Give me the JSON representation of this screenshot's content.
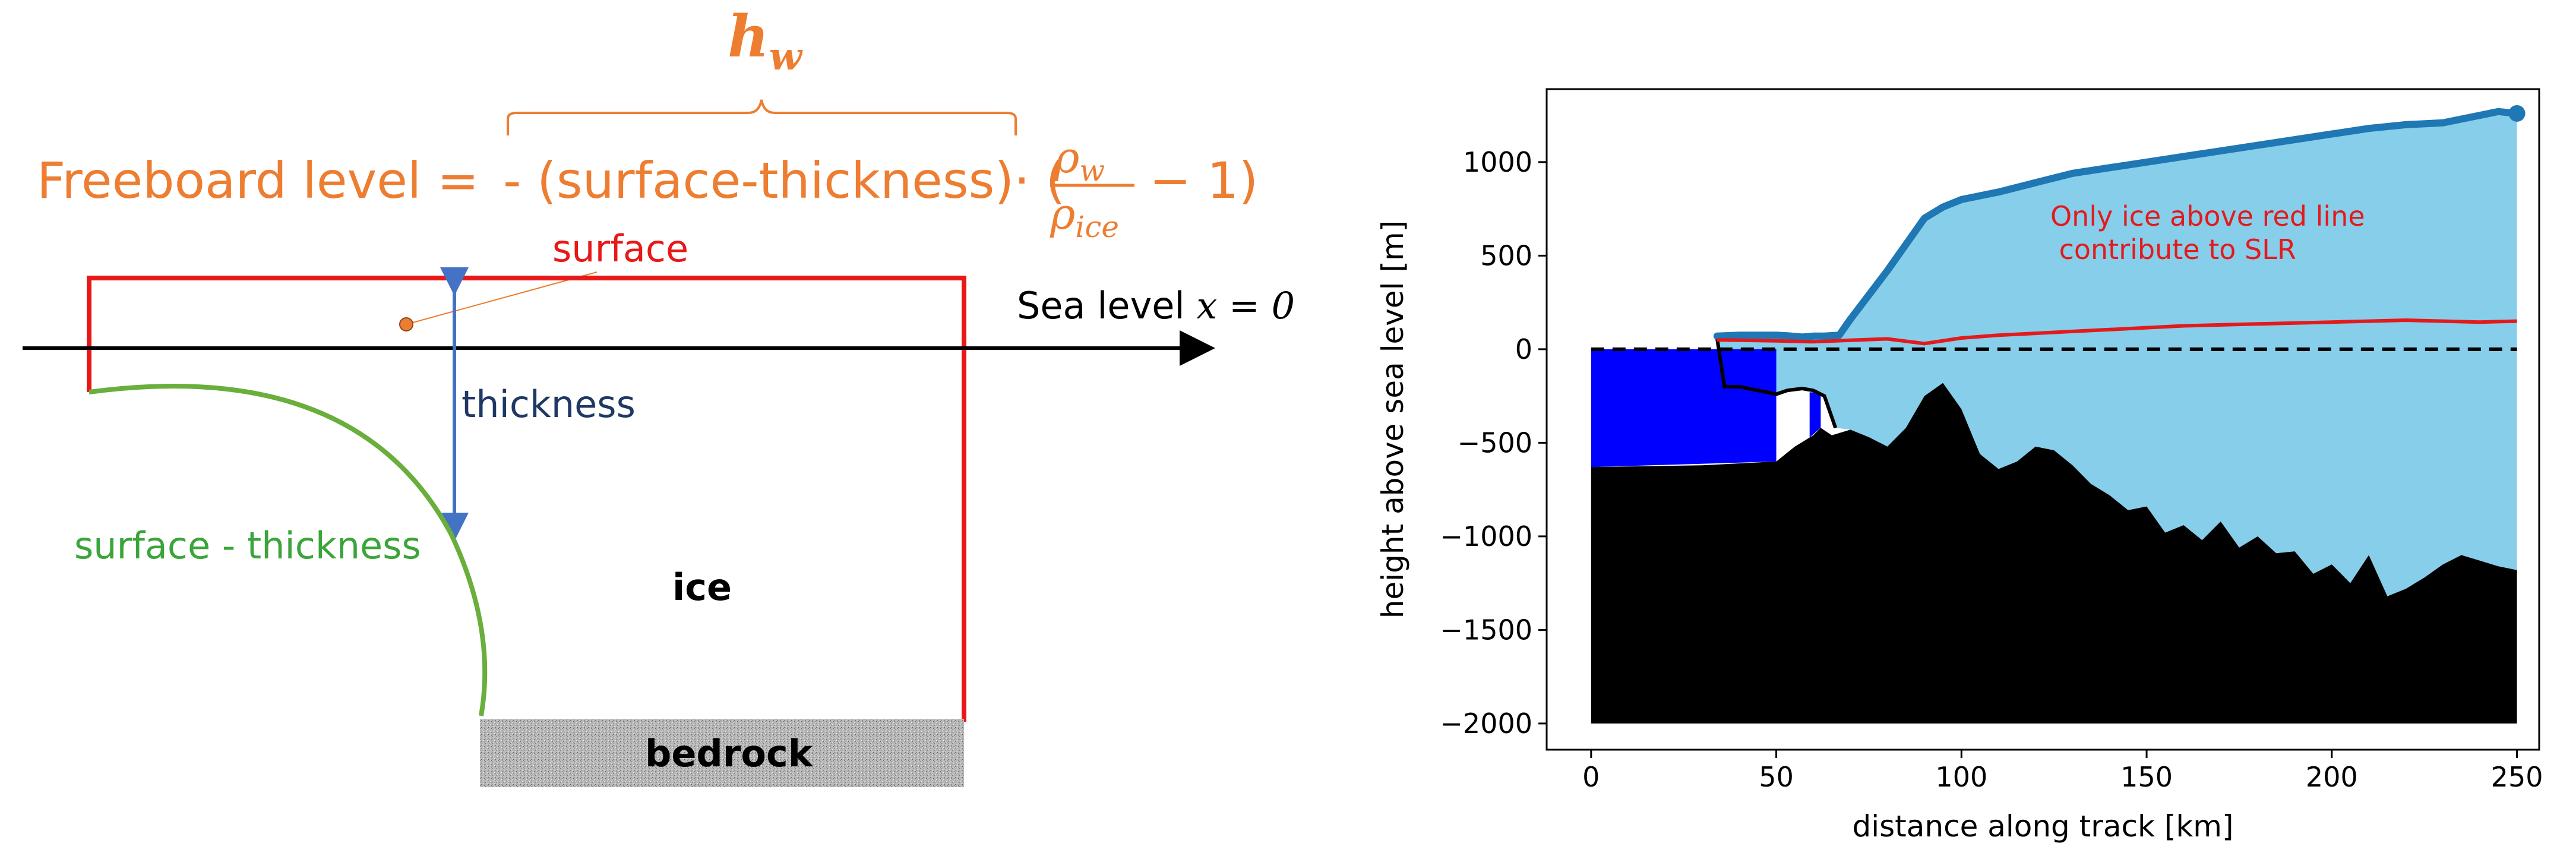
{
  "diagram": {
    "hw_label": "h",
    "hw_sub": "w",
    "formula_lhs": "Freeboard level = ",
    "formula_rhs": "- (surface-thickness)· (",
    "rho": "ρ",
    "rho_w_sub": "w",
    "rho_ice_sub": "ice",
    "formula_tail": "− 1)",
    "surface_label": "surface",
    "sea_level_text": "Sea level ",
    "sea_level_math": "x = 0",
    "thickness_label": "thickness",
    "surface_minus_thickness_label": "surface - thickness",
    "ice_label": "ice",
    "bedrock_label": "bedrock",
    "colors": {
      "orange": "#ED7D31",
      "red": "#E81818",
      "green": "#6AAE3C",
      "blue_arrow": "#4472C4",
      "navy_text": "#1F3864",
      "green_text": "#3AA53A"
    }
  },
  "chart_data": {
    "type": "area",
    "title": "",
    "xlabel": "distance along track [km]",
    "ylabel": "height above sea level [m]",
    "xlim": [
      -12,
      256
    ],
    "ylim": [
      -2140,
      1390
    ],
    "xticks": [
      0,
      50,
      100,
      150,
      200,
      250
    ],
    "yticks": [
      1000,
      500,
      0,
      -500,
      -1000,
      -1500,
      -2000
    ],
    "xtick_labels": [
      "0",
      "50",
      "100",
      "150",
      "200",
      "250"
    ],
    "ytick_labels": [
      "1000",
      "500",
      "0",
      "−500",
      "−1000",
      "−1500",
      "−2000"
    ],
    "annotation": "Only ice above red line\n contribute to SLR",
    "colors": {
      "ice": "#87CEEB",
      "surface": "#1F77B4",
      "freeboard": "#E31A1C",
      "water": "#0000FF",
      "bed": "#000000"
    },
    "surface": {
      "x": [
        34,
        40,
        45,
        50,
        53,
        57,
        60,
        63,
        67,
        70,
        75,
        80,
        85,
        90,
        95,
        100,
        110,
        120,
        130,
        140,
        150,
        160,
        170,
        180,
        190,
        200,
        210,
        220,
        230,
        240,
        245,
        250
      ],
      "y": [
        70,
        75,
        75,
        75,
        72,
        65,
        70,
        70,
        75,
        160,
        290,
        420,
        560,
        700,
        760,
        800,
        840,
        890,
        940,
        970,
        1000,
        1030,
        1060,
        1090,
        1120,
        1150,
        1180,
        1200,
        1210,
        1250,
        1270,
        1260
      ]
    },
    "freeboard_line": {
      "x": [
        34,
        50,
        60,
        70,
        80,
        90,
        100,
        110,
        120,
        130,
        140,
        150,
        160,
        170,
        180,
        190,
        200,
        210,
        220,
        230,
        240,
        250
      ],
      "y": [
        50,
        45,
        40,
        48,
        55,
        30,
        60,
        75,
        85,
        95,
        105,
        115,
        125,
        130,
        135,
        140,
        145,
        150,
        155,
        150,
        145,
        150
      ]
    },
    "ice_base": {
      "x": [
        34,
        36,
        40,
        45,
        50,
        53,
        57,
        60,
        63,
        66
      ],
      "y": [
        60,
        -200,
        -200,
        -220,
        -240,
        -220,
        -210,
        -220,
        -250,
        -420
      ]
    },
    "bed": {
      "x": [
        0,
        30,
        40,
        50,
        55,
        60,
        62,
        65,
        70,
        75,
        80,
        85,
        90,
        95,
        100,
        105,
        110,
        115,
        120,
        125,
        130,
        135,
        140,
        145,
        150,
        155,
        160,
        165,
        170,
        175,
        180,
        185,
        190,
        195,
        200,
        205,
        210,
        215,
        220,
        225,
        230,
        235,
        240,
        245,
        250
      ],
      "y": [
        -630,
        -620,
        -610,
        -600,
        -520,
        -460,
        -420,
        -460,
        -430,
        -470,
        -520,
        -420,
        -250,
        -180,
        -320,
        -560,
        -640,
        -600,
        -520,
        -540,
        -620,
        -720,
        -780,
        -860,
        -840,
        -980,
        -940,
        -1020,
        -920,
        -1060,
        -1000,
        -1090,
        -1080,
        -1200,
        -1150,
        -1250,
        -1100,
        -1320,
        -1280,
        -1220,
        -1150,
        -1100,
        -1130,
        -1160,
        -1180
      ]
    },
    "water_blocks": [
      {
        "x0": 0,
        "x1": 50,
        "top": 0
      },
      {
        "x0": 59,
        "x1": 62,
        "top": -230
      }
    ],
    "bed_floor": -2000
  }
}
